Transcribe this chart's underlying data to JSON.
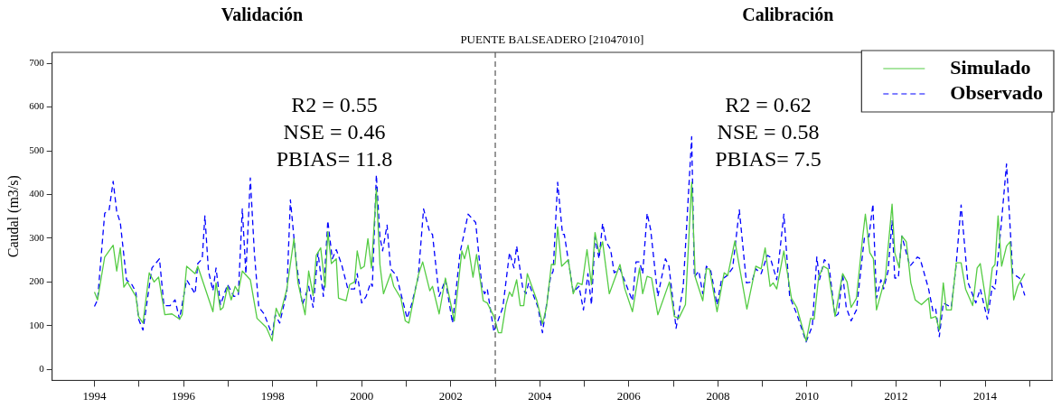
{
  "chart_data": {
    "type": "line",
    "title": "PUENTE BALSEADERO [21047010]",
    "ylabel": "Caudal (m3/s)",
    "annotations": [
      "Validación",
      "Calibración",
      "R2 = 0.55",
      "NSE = 0.46",
      "PBIAS= 11.8",
      "R2 = 0.62",
      "NSE = 0.58",
      "PBIAS= 7.5"
    ],
    "xlim": [
      1993.05,
      2015.5
    ],
    "xticks": [
      1994,
      {
        "value": 1995,
        "label": null
      },
      1996,
      {
        "value": 1997,
        "label": null
      },
      1998,
      {
        "value": 1999,
        "label": null
      },
      2000,
      {
        "value": 2001,
        "label": null
      },
      2002,
      {
        "value": 2003,
        "label": null
      },
      2004,
      {
        "value": 2005,
        "label": null
      },
      2006,
      {
        "value": 2007,
        "label": null
      },
      2008,
      {
        "value": 2009,
        "label": null
      },
      2010,
      {
        "value": 2011,
        "label": null
      },
      2012,
      {
        "value": 2013,
        "label": null
      },
      2014,
      {
        "value": 2015,
        "label": null
      }
    ],
    "ylim": [
      -25,
      725
    ],
    "yticks": [
      0,
      100,
      200,
      300,
      400,
      500,
      600,
      700
    ],
    "grid": false,
    "legend": "top right",
    "marker": "none",
    "ref_lines": [
      {
        "axis": "x",
        "value": 2003,
        "color": "#555555",
        "line_style": "dashed"
      }
    ],
    "series": [
      {
        "name": "Simulado",
        "color": "#55cc44",
        "line_style": "solid",
        "x": [
          1994.0,
          1994.07,
          1994.23,
          1994.42,
          1994.5,
          1994.58,
          1994.66,
          1994.74,
          1994.93,
          1994.99,
          1995.09,
          1995.23,
          1995.34,
          1995.44,
          1995.58,
          1995.74,
          1995.91,
          1995.97,
          1996.07,
          1996.26,
          1996.32,
          1996.66,
          1996.73,
          1996.83,
          1996.89,
          1996.99,
          1997.07,
          1997.16,
          1997.23,
          1997.32,
          1997.5,
          1997.65,
          1997.86,
          1997.99,
          1998.08,
          1998.16,
          1998.32,
          1998.48,
          1998.57,
          1998.73,
          1998.81,
          1998.91,
          1998.98,
          1999.08,
          1999.18,
          1999.24,
          1999.32,
          1999.43,
          1999.48,
          1999.65,
          1999.73,
          1999.84,
          1999.9,
          1999.98,
          2000.06,
          2000.14,
          2000.22,
          2000.33,
          2000.41,
          2000.49,
          2000.65,
          2000.72,
          2000.88,
          2000.98,
          2001.06,
          2001.27,
          2001.37,
          2001.53,
          2001.59,
          2001.74,
          2001.88,
          2002.08,
          2002.25,
          2002.31,
          2002.39,
          2002.5,
          2002.58,
          2002.73,
          2002.82,
          2002.97,
          2003.07,
          2003.14,
          2003.24,
          2003.32,
          2003.38,
          2003.48,
          2003.56,
          2003.64,
          2003.72,
          2003.93,
          2004.06,
          2004.15,
          2004.26,
          2004.34,
          2004.4,
          2004.49,
          2004.64,
          2004.75,
          2004.85,
          2004.95,
          2005.06,
          2005.16,
          2005.24,
          2005.33,
          2005.41,
          2005.56,
          2005.8,
          2005.91,
          2006.08,
          2006.24,
          2006.31,
          2006.41,
          2006.51,
          2006.65,
          2006.91,
          2007.02,
          2007.12,
          2007.27,
          2007.41,
          2007.49,
          2007.66,
          2007.74,
          2007.81,
          2007.98,
          2008.14,
          2008.22,
          2008.38,
          2008.65,
          2008.85,
          2008.97,
          2009.06,
          2009.17,
          2009.24,
          2009.32,
          2009.48,
          2009.65,
          2009.77,
          2009.98,
          2010.08,
          2010.16,
          2010.26,
          2010.37,
          2010.47,
          2010.63,
          2010.8,
          2010.9,
          2010.99,
          2011.11,
          2011.25,
          2011.31,
          2011.41,
          2011.49,
          2011.56,
          2011.76,
          2011.91,
          2011.97,
          2012.07,
          2012.13,
          2012.23,
          2012.33,
          2012.43,
          2012.57,
          2012.73,
          2012.78,
          2012.89,
          2012.97,
          2013.06,
          2013.13,
          2013.24,
          2013.35,
          2013.46,
          2013.56,
          2013.72,
          2013.82,
          2013.89,
          2014.05,
          2014.16,
          2014.22,
          2014.29,
          2014.37,
          2014.48,
          2014.56,
          2014.64,
          2014.73,
          2014.89
        ],
        "values": [
          177,
          159,
          257,
          284,
          225,
          278,
          188,
          200,
          167,
          121,
          106,
          221,
          200,
          211,
          125,
          127,
          115,
          125,
          236,
          219,
          236,
          132,
          198,
          136,
          142,
          190,
          159,
          190,
          177,
          225,
          205,
          117,
          96,
          65,
          140,
          121,
          184,
          299,
          198,
          125,
          225,
          169,
          261,
          278,
          188,
          315,
          242,
          253,
          163,
          157,
          194,
          200,
          271,
          230,
          236,
          299,
          232,
          413,
          240,
          173,
          219,
          190,
          163,
          111,
          106,
          215,
          246,
          180,
          190,
          127,
          209,
          111,
          271,
          253,
          284,
          211,
          263,
          157,
          152,
          121,
          84,
          84,
          148,
          177,
          167,
          205,
          146,
          146,
          219,
          159,
          104,
          142,
          240,
          240,
          326,
          236,
          251,
          173,
          198,
          194,
          274,
          194,
          313,
          267,
          292,
          173,
          240,
          184,
          132,
          232,
          173,
          213,
          209,
          125,
          200,
          121,
          117,
          148,
          428,
          211,
          157,
          230,
          230,
          132,
          221,
          215,
          294,
          138,
          236,
          230,
          278,
          190,
          198,
          184,
          271,
          163,
          142,
          65,
          117,
          115,
          211,
          236,
          230,
          121,
          219,
          200,
          142,
          163,
          303,
          355,
          267,
          253,
          136,
          211,
          378,
          267,
          232,
          305,
          292,
          198,
          159,
          148,
          163,
          117,
          121,
          90,
          198,
          136,
          136,
          244,
          244,
          184,
          146,
          232,
          242,
          136,
          232,
          240,
          351,
          236,
          282,
          292,
          159,
          190,
          219
        ]
      },
      {
        "name": "Observado",
        "color": "#0000ff",
        "line_style": "dashed",
        "x": [
          1994.0,
          1994.07,
          1994.23,
          1994.33,
          1994.42,
          1994.5,
          1994.58,
          1994.72,
          1994.84,
          1994.93,
          1994.99,
          1995.09,
          1995.29,
          1995.46,
          1995.56,
          1995.7,
          1995.81,
          1995.91,
          1996.07,
          1996.26,
          1996.32,
          1996.42,
          1996.48,
          1996.56,
          1996.66,
          1996.73,
          1996.83,
          1996.99,
          1997.13,
          1997.23,
          1997.32,
          1997.4,
          1997.5,
          1997.59,
          1997.69,
          1997.81,
          1997.99,
          1998.06,
          1998.16,
          1998.32,
          1998.4,
          1998.53,
          1998.67,
          1998.81,
          1998.91,
          1999.02,
          1999.14,
          1999.24,
          1999.34,
          1999.43,
          1999.55,
          1999.69,
          1999.84,
          1999.9,
          2000.0,
          2000.1,
          2000.2,
          2000.24,
          2000.33,
          2000.41,
          2000.47,
          2000.57,
          2000.65,
          2000.78,
          2001.02,
          2001.12,
          2001.27,
          2001.39,
          2001.53,
          2001.59,
          2001.74,
          2001.88,
          2002.04,
          2002.21,
          2002.39,
          2002.56,
          2002.7,
          2002.76,
          2002.82,
          2002.97,
          2003.17,
          2003.32,
          2003.42,
          2003.48,
          2003.62,
          2003.69,
          2003.75,
          2003.96,
          2004.06,
          2004.24,
          2004.3,
          2004.4,
          2004.51,
          2004.55,
          2004.75,
          2004.88,
          2004.98,
          2005.08,
          2005.16,
          2005.24,
          2005.33,
          2005.41,
          2005.49,
          2005.59,
          2005.67,
          2005.8,
          2006.08,
          2006.16,
          2006.24,
          2006.31,
          2006.41,
          2006.49,
          2006.65,
          2006.82,
          2006.9,
          2007.0,
          2007.06,
          2007.22,
          2007.41,
          2007.47,
          2007.57,
          2007.66,
          2007.74,
          2007.84,
          2007.98,
          2008.08,
          2008.21,
          2008.33,
          2008.48,
          2008.64,
          2008.76,
          2008.85,
          2008.97,
          2009.11,
          2009.17,
          2009.32,
          2009.48,
          2009.61,
          2009.77,
          2009.98,
          2010.12,
          2010.22,
          2010.28,
          2010.39,
          2010.49,
          2010.63,
          2010.7,
          2010.8,
          2010.88,
          2010.99,
          2011.11,
          2011.29,
          2011.39,
          2011.48,
          2011.56,
          2011.66,
          2011.72,
          2011.82,
          2011.91,
          2011.97,
          2012.05,
          2012.13,
          2012.31,
          2012.48,
          2012.54,
          2012.73,
          2012.83,
          2012.89,
          2012.97,
          2013.06,
          2013.24,
          2013.34,
          2013.46,
          2013.61,
          2013.79,
          2013.89,
          2014.05,
          2014.16,
          2014.22,
          2014.36,
          2014.48,
          2014.62,
          2014.77,
          2014.89
        ],
        "values": [
          144,
          159,
          357,
          365,
          430,
          361,
          336,
          205,
          194,
          177,
          115,
          90,
          232,
          253,
          146,
          146,
          159,
          115,
          205,
          173,
          242,
          253,
          351,
          225,
          180,
          232,
          148,
          194,
          167,
          169,
          367,
          219,
          438,
          267,
          142,
          127,
          79,
          125,
          106,
          177,
          388,
          246,
          148,
          190,
          142,
          267,
          167,
          340,
          253,
          274,
          240,
          184,
          184,
          219,
          152,
          167,
          198,
          190,
          445,
          303,
          271,
          330,
          230,
          215,
          117,
          148,
          211,
          367,
          313,
          309,
          167,
          205,
          106,
          267,
          355,
          336,
          190,
          173,
          184,
          86,
          142,
          267,
          232,
          282,
          184,
          173,
          198,
          142,
          84,
          211,
          225,
          428,
          309,
          309,
          177,
          190,
          136,
          219,
          148,
          303,
          253,
          334,
          292,
          274,
          221,
          230,
          157,
          246,
          246,
          219,
          357,
          319,
          167,
          253,
          236,
          148,
          94,
          188,
          532,
          211,
          225,
          173,
          236,
          225,
          148,
          205,
          215,
          232,
          365,
          198,
          200,
          230,
          219,
          261,
          257,
          205,
          355,
          167,
          127,
          63,
          100,
          257,
          205,
          251,
          240,
          121,
          127,
          219,
          142,
          111,
          136,
          303,
          303,
          378,
          163,
          205,
          184,
          225,
          340,
          209,
          209,
          305,
          236,
          257,
          253,
          184,
          132,
          138,
          75,
          152,
          142,
          230,
          376,
          200,
          152,
          184,
          115,
          190,
          184,
          330,
          470,
          219,
          209,
          169
        ]
      }
    ]
  }
}
